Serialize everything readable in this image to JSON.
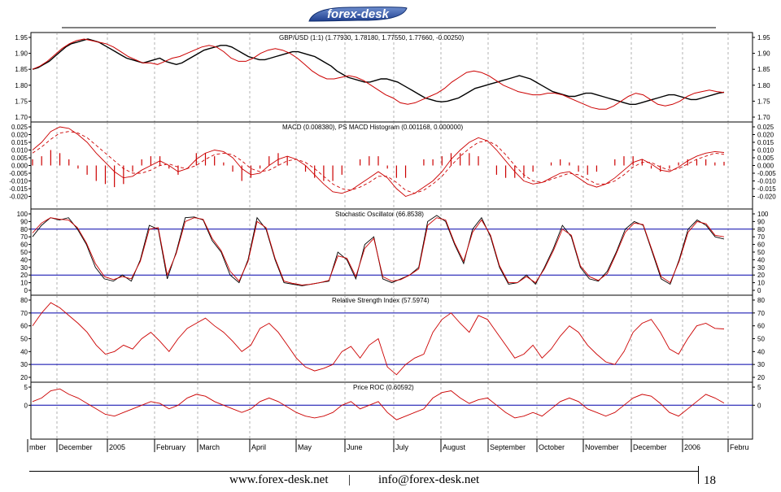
{
  "header": {
    "logo_text": "forex-desk"
  },
  "footer": {
    "website": "www.forex-desk.net",
    "separator": "|",
    "email": "info@forex-desk.net",
    "page_number": "18"
  },
  "colors": {
    "price": "#000000",
    "signal": "#cc0000",
    "level_line": "#0000aa",
    "grid": "#808080",
    "logo_blue": "#1f3f8f"
  },
  "chart_data": [
    {
      "type": "line",
      "title": "GBP/USD (1:1) (1.77930, 1.78180, 1.77550, 1.77660, -0.00250)",
      "series": [
        {
          "values": [
            1.85,
            1.855,
            1.865,
            1.875,
            1.89,
            1.905,
            1.92,
            1.93,
            1.935,
            1.94,
            1.945,
            1.94,
            1.935,
            1.925,
            1.915,
            1.905,
            1.895,
            1.885,
            1.88,
            1.875,
            1.87,
            1.875,
            1.88,
            1.885,
            1.875,
            1.87,
            1.865,
            1.87,
            1.88,
            1.89,
            1.9,
            1.91,
            1.915,
            1.92,
            1.925,
            1.925,
            1.92,
            1.91,
            1.9,
            1.89,
            1.885,
            1.88,
            1.88,
            1.885,
            1.89,
            1.895,
            1.9,
            1.905,
            1.905,
            1.9,
            1.895,
            1.89,
            1.88,
            1.87,
            1.86,
            1.845,
            1.835,
            1.825,
            1.82,
            1.815,
            1.81,
            1.81,
            1.815,
            1.82,
            1.82,
            1.815,
            1.81,
            1.8,
            1.79,
            1.78,
            1.77,
            1.76,
            1.755,
            1.75,
            1.748,
            1.75,
            1.755,
            1.76,
            1.77,
            1.78,
            1.79,
            1.795,
            1.8,
            1.805,
            1.81,
            1.815,
            1.82,
            1.825,
            1.83,
            1.825,
            1.82,
            1.81,
            1.8,
            1.79,
            1.78,
            1.775,
            1.77,
            1.765,
            1.765,
            1.77,
            1.775,
            1.775,
            1.77,
            1.765,
            1.76,
            1.755,
            1.75,
            1.745,
            1.74,
            1.74,
            1.745,
            1.75,
            1.755,
            1.76,
            1.765,
            1.77,
            1.77,
            1.765,
            1.76,
            1.755,
            1.755,
            1.76,
            1.765,
            1.77,
            1.775,
            1.778
          ]
        },
        {
          "values": [
            1.85,
            1.86,
            1.875,
            1.895,
            1.915,
            1.93,
            1.94,
            1.945,
            1.94,
            1.935,
            1.93,
            1.92,
            1.905,
            1.89,
            1.88,
            1.87,
            1.87,
            1.865,
            1.875,
            1.885,
            1.89,
            1.9,
            1.91,
            1.92,
            1.925,
            1.92,
            1.905,
            1.885,
            1.875,
            1.875,
            1.885,
            1.9,
            1.91,
            1.915,
            1.91,
            1.9,
            1.885,
            1.865,
            1.845,
            1.83,
            1.82,
            1.82,
            1.825,
            1.83,
            1.825,
            1.815,
            1.8,
            1.785,
            1.77,
            1.76,
            1.745,
            1.74,
            1.745,
            1.755,
            1.765,
            1.775,
            1.79,
            1.81,
            1.825,
            1.84,
            1.845,
            1.84,
            1.83,
            1.815,
            1.8,
            1.79,
            1.78,
            1.775,
            1.77,
            1.77,
            1.775,
            1.775,
            1.77,
            1.76,
            1.75,
            1.74,
            1.73,
            1.725,
            1.725,
            1.735,
            1.75,
            1.765,
            1.775,
            1.77,
            1.755,
            1.74,
            1.735,
            1.74,
            1.75,
            1.765,
            1.775,
            1.78,
            1.785,
            1.78,
            1.777
          ]
        }
      ],
      "ylim": [
        1.7,
        1.95
      ],
      "yticks": [
        "1.95",
        "1.90",
        "1.85",
        "1.80",
        "1.75",
        "1.70"
      ]
    },
    {
      "type": "line",
      "title": "MACD (0.008380), PS MACD Histogram (0.001168, 0.000000)",
      "series": [
        {
          "values": [
            0.01,
            0.015,
            0.022,
            0.025,
            0.024,
            0.02,
            0.015,
            0.008,
            0.002,
            -0.004,
            -0.008,
            -0.007,
            -0.003,
            0.0,
            0.003,
            0.0,
            -0.004,
            -0.002,
            0.004,
            0.008,
            0.01,
            0.009,
            0.005,
            -0.002,
            -0.006,
            -0.005,
            0.0,
            0.004,
            0.006,
            0.004,
            0.0,
            -0.006,
            -0.012,
            -0.017,
            -0.018,
            -0.016,
            -0.012,
            -0.008,
            -0.004,
            -0.008,
            -0.015,
            -0.02,
            -0.018,
            -0.014,
            -0.01,
            -0.004,
            0.004,
            0.01,
            0.015,
            0.018,
            0.016,
            0.01,
            0.003,
            -0.004,
            -0.01,
            -0.012,
            -0.011,
            -0.008,
            -0.005,
            -0.004,
            -0.008,
            -0.012,
            -0.014,
            -0.012,
            -0.008,
            -0.003,
            0.002,
            0.004,
            0.001,
            -0.003,
            -0.004,
            -0.001,
            0.003,
            0.006,
            0.008,
            0.009,
            0.0084
          ]
        },
        {
          "values": [
            0.008,
            0.012,
            0.017,
            0.021,
            0.022,
            0.021,
            0.018,
            0.013,
            0.008,
            0.003,
            -0.002,
            -0.005,
            -0.005,
            -0.003,
            0.0,
            0.001,
            -0.001,
            -0.002,
            0.0,
            0.004,
            0.007,
            0.008,
            0.007,
            0.003,
            -0.002,
            -0.004,
            -0.003,
            0.0,
            0.003,
            0.004,
            0.002,
            -0.002,
            -0.007,
            -0.012,
            -0.015,
            -0.016,
            -0.014,
            -0.011,
            -0.007,
            -0.007,
            -0.011,
            -0.016,
            -0.018,
            -0.016,
            -0.012,
            -0.007,
            0.0,
            0.006,
            0.011,
            0.015,
            0.016,
            0.013,
            0.007,
            0.0,
            -0.006,
            -0.01,
            -0.011,
            -0.009,
            -0.007,
            -0.005,
            -0.006,
            -0.009,
            -0.012,
            -0.012,
            -0.01,
            -0.006,
            -0.001,
            0.002,
            0.002,
            -0.001,
            -0.003,
            -0.002,
            0.001,
            0.004,
            0.006,
            0.008,
            0.0072
          ]
        }
      ],
      "ylim": [
        -0.025,
        0.025
      ],
      "yticks": [
        "0.025",
        "0.020",
        "0.015",
        "0.010",
        "0.005",
        "0.000",
        "-0.005",
        "-0.010",
        "-0.015",
        "-0.020"
      ]
    },
    {
      "type": "line",
      "title": "Stochastic Oscillator (66.8538)",
      "series": [
        {
          "values": [
            70,
            85,
            95,
            92,
            95,
            80,
            60,
            30,
            15,
            12,
            20,
            12,
            40,
            85,
            80,
            15,
            50,
            95,
            96,
            92,
            65,
            50,
            20,
            10,
            40,
            95,
            80,
            40,
            10,
            8,
            6,
            8,
            10,
            12,
            50,
            40,
            15,
            60,
            70,
            15,
            10,
            15,
            20,
            30,
            90,
            98,
            90,
            60,
            35,
            80,
            95,
            70,
            30,
            8,
            10,
            20,
            8,
            30,
            55,
            85,
            70,
            30,
            15,
            12,
            25,
            50,
            80,
            90,
            85,
            50,
            15,
            8,
            40,
            80,
            92,
            85,
            70,
            67
          ]
        },
        {
          "values": [
            75,
            88,
            95,
            93,
            92,
            82,
            62,
            35,
            18,
            14,
            18,
            15,
            38,
            80,
            82,
            20,
            48,
            90,
            95,
            93,
            68,
            52,
            25,
            12,
            38,
            90,
            82,
            42,
            12,
            9,
            7,
            8,
            10,
            13,
            45,
            42,
            18,
            55,
            68,
            18,
            12,
            14,
            20,
            28,
            85,
            95,
            92,
            62,
            38,
            76,
            92,
            72,
            32,
            10,
            10,
            18,
            10,
            28,
            52,
            80,
            72,
            32,
            18,
            13,
            22,
            48,
            76,
            88,
            86,
            52,
            18,
            10,
            38,
            76,
            90,
            87,
            72,
            70
          ]
        }
      ],
      "ylim": [
        0,
        100
      ],
      "yticks": [
        "100",
        "90",
        "80",
        "70",
        "60",
        "50",
        "40",
        "30",
        "20",
        "10",
        "0"
      ],
      "levels": [
        80,
        20
      ]
    },
    {
      "type": "line",
      "title": "Relative Strength Index (57.5974)",
      "series": [
        {
          "values": [
            60,
            70,
            78,
            74,
            68,
            62,
            55,
            45,
            38,
            40,
            45,
            42,
            50,
            55,
            48,
            40,
            50,
            58,
            62,
            66,
            60,
            55,
            48,
            40,
            45,
            58,
            62,
            55,
            45,
            35,
            28,
            25,
            27,
            30,
            40,
            44,
            35,
            45,
            50,
            28,
            22,
            30,
            35,
            38,
            55,
            65,
            70,
            62,
            55,
            68,
            65,
            55,
            45,
            35,
            38,
            45,
            35,
            42,
            52,
            60,
            55,
            45,
            38,
            32,
            30,
            40,
            55,
            62,
            65,
            55,
            42,
            38,
            50,
            60,
            62,
            58,
            57.6
          ]
        }
      ],
      "ylim": [
        20,
        80
      ],
      "yticks": [
        "80",
        "70",
        "60",
        "50",
        "40",
        "30",
        "20"
      ],
      "levels": [
        70,
        30
      ]
    },
    {
      "type": "line",
      "title": "Price ROC (0.60592)",
      "series": [
        {
          "values": [
            1,
            2,
            4,
            4.5,
            3,
            2,
            0.5,
            -1,
            -2.5,
            -3,
            -2,
            -1,
            0,
            1,
            0.5,
            -1,
            0,
            2,
            3,
            2.5,
            1,
            0,
            -1,
            -2,
            -1,
            1,
            2,
            1,
            -0.5,
            -2,
            -3,
            -3.5,
            -3,
            -2,
            0,
            1,
            -1,
            0,
            1,
            -2,
            -4,
            -3,
            -2,
            -1,
            2,
            3.5,
            4,
            2,
            0.5,
            1.5,
            2,
            0,
            -2,
            -3.5,
            -3,
            -2,
            -3,
            -1,
            1,
            2,
            1,
            -1,
            -2,
            -3,
            -2,
            0,
            2,
            3,
            2.5,
            0.5,
            -2,
            -3,
            -1,
            1,
            3,
            2,
            0.6
          ]
        }
      ],
      "ylim": [
        -8,
        5
      ],
      "yticks": [
        "5",
        "0"
      ],
      "levels": [
        0
      ]
    }
  ],
  "x_axis": {
    "labels": [
      "mber",
      "December",
      "2005",
      "February",
      "March",
      "April",
      "May",
      "June",
      "July",
      "August",
      "September",
      "October",
      "November",
      "December",
      "2006",
      "Febru"
    ]
  },
  "right_axes": {
    "price": [
      "1.95",
      "1.90",
      "1.85",
      "1.80",
      "1.75",
      "1.70"
    ],
    "macd": [
      "0.025",
      "0.020",
      "0.015",
      "0.010",
      "0.005",
      "0.000",
      "-0.005",
      "-0.010",
      "-0.015",
      "-0.020"
    ],
    "stoch": [
      "100",
      "90",
      "80",
      "70",
      "60",
      "50",
      "40",
      "30",
      "20",
      "10",
      "0"
    ],
    "rsi": [
      "80",
      "70",
      "60",
      "50",
      "40",
      "30",
      "20"
    ],
    "roc": [
      "5",
      "0"
    ]
  }
}
